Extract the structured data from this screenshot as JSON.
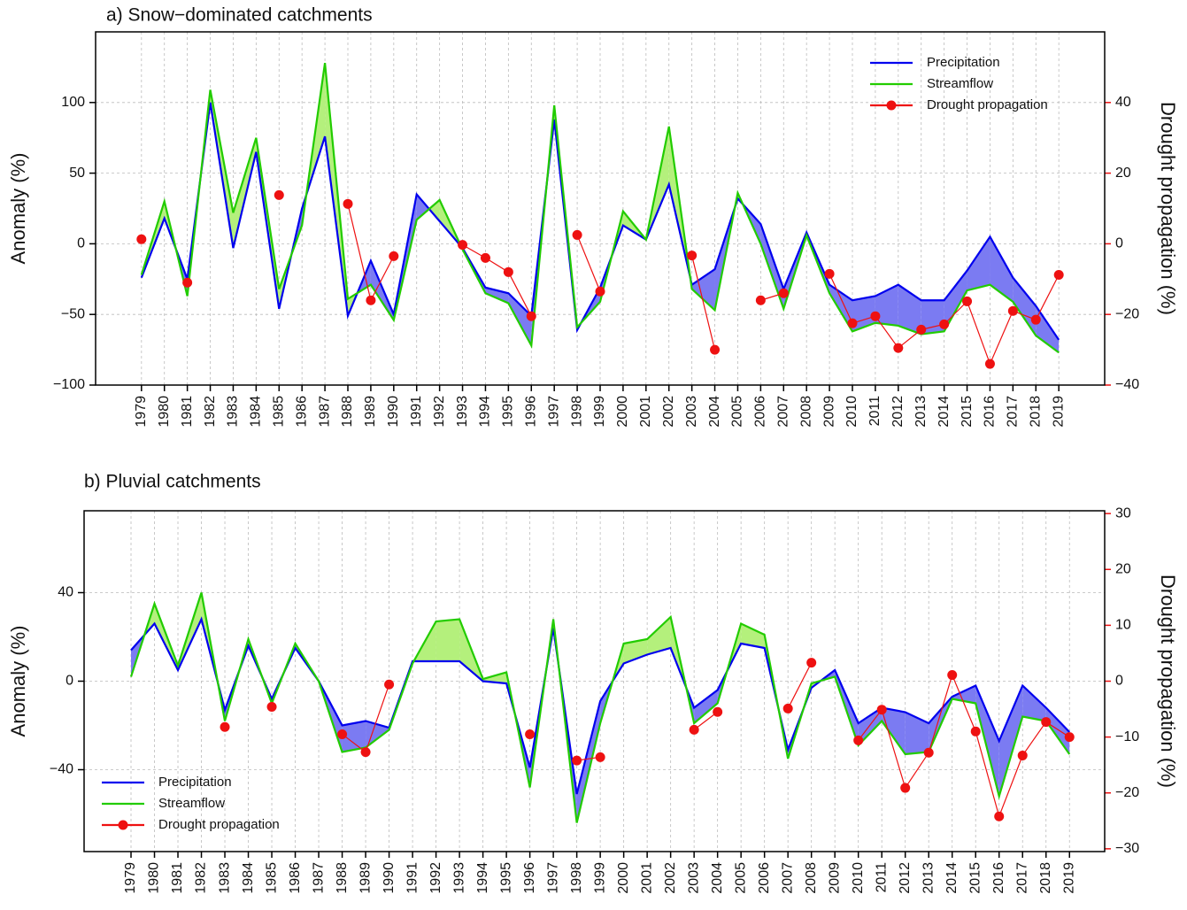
{
  "chart_data": [
    {
      "type": "line",
      "title": "a) Snow−dominated catchments",
      "y_label": "Anomaly (%)",
      "y2_label": "Drought propagation (%)",
      "x": [
        1979,
        1980,
        1981,
        1982,
        1983,
        1984,
        1985,
        1986,
        1987,
        1988,
        1989,
        1990,
        1991,
        1992,
        1993,
        1994,
        1995,
        1996,
        1997,
        1998,
        1999,
        2000,
        2001,
        2002,
        2003,
        2004,
        2005,
        2006,
        2007,
        2008,
        2009,
        2010,
        2011,
        2012,
        2013,
        2014,
        2015,
        2016,
        2017,
        2018,
        2019
      ],
      "xlim": [
        1977,
        2021
      ],
      "xticks": [
        1979,
        1980,
        1981,
        1982,
        1983,
        1984,
        1985,
        1986,
        1987,
        1988,
        1989,
        1990,
        1991,
        1992,
        1993,
        1994,
        1995,
        1996,
        1997,
        1998,
        1999,
        2000,
        2001,
        2002,
        2003,
        2004,
        2005,
        2006,
        2007,
        2008,
        2009,
        2010,
        2011,
        2012,
        2013,
        2014,
        2015,
        2016,
        2017,
        2018,
        2019
      ],
      "ylim": [
        -100,
        150
      ],
      "yticks": [
        {
          "value": -100,
          "label": "−100"
        },
        {
          "value": -50,
          "label": "−50"
        },
        0,
        50,
        100
      ],
      "y2lim": [
        -40,
        60
      ],
      "y2ticks": [
        {
          "value": -40,
          "label": "−40"
        },
        {
          "value": -20,
          "label": "−20"
        },
        0,
        20,
        40
      ],
      "grid": true,
      "legend": "upper right",
      "fill_colors": [
        "#7b7bf2",
        "#b4f07c"
      ],
      "y2_color": "#ee1111",
      "series": [
        {
          "name": "Precipitation",
          "color": "#0000ee",
          "values": [
            -24,
            18,
            -25,
            100,
            -3,
            65,
            -46,
            25,
            76,
            -51,
            -12,
            -50,
            35,
            16,
            -3,
            -31,
            -35,
            -51,
            88,
            -61,
            -31,
            13,
            3,
            42,
            -29,
            -18,
            32,
            14,
            -32,
            8,
            -29,
            -40,
            -37,
            -29,
            -40,
            -40,
            -19,
            5,
            -24,
            -44,
            -68
          ]
        },
        {
          "name": "Streamflow",
          "color": "#22cc00",
          "values": [
            -22,
            30,
            -37,
            109,
            22,
            75,
            -32,
            13,
            128,
            -39,
            -29,
            -54,
            17,
            31,
            -4,
            -35,
            -42,
            -72,
            98,
            -59,
            -41,
            23,
            3,
            83,
            -32,
            -47,
            36,
            0,
            -46,
            6,
            -35,
            -62,
            -56,
            -58,
            -64,
            -62,
            -33,
            -29,
            -41,
            -65,
            -77
          ]
        },
        {
          "name": "Drought propagation",
          "color": "#ee1111",
          "axis": "y2",
          "marker": "circle",
          "values": [
            1.3,
            null,
            -11,
            null,
            null,
            null,
            13.8,
            null,
            null,
            11.3,
            -16,
            -3.5,
            null,
            null,
            -0.3,
            -4,
            -8,
            -20.5,
            null,
            2.5,
            -13.5,
            null,
            null,
            null,
            -3.3,
            -30,
            null,
            -16,
            -14,
            null,
            -8.5,
            -22.5,
            -20.5,
            -29.5,
            -24.3,
            -22.8,
            -16.3,
            -34,
            -19,
            -21.5,
            -8.8
          ]
        }
      ]
    },
    {
      "type": "line",
      "title": "b) Pluvial catchments",
      "y_label": "Anomaly (%)",
      "y2_label": "Drought propagation (%)",
      "x": [
        1979,
        1980,
        1981,
        1982,
        1983,
        1984,
        1985,
        1986,
        1987,
        1988,
        1989,
        1990,
        1991,
        1992,
        1993,
        1994,
        1995,
        1996,
        1997,
        1998,
        1999,
        2000,
        2001,
        2002,
        2003,
        2004,
        2005,
        2006,
        2007,
        2008,
        2009,
        2010,
        2011,
        2012,
        2013,
        2014,
        2015,
        2016,
        2017,
        2018,
        2019
      ],
      "xlim": [
        1977,
        2020.5
      ],
      "xticks": [
        1979,
        1980,
        1981,
        1982,
        1983,
        1984,
        1985,
        1986,
        1987,
        1988,
        1989,
        1990,
        1991,
        1992,
        1993,
        1994,
        1995,
        1996,
        1997,
        1998,
        1999,
        2000,
        2001,
        2002,
        2003,
        2004,
        2005,
        2006,
        2007,
        2008,
        2009,
        2010,
        2011,
        2012,
        2013,
        2014,
        2015,
        2016,
        2017,
        2018,
        2019
      ],
      "ylim": [
        -77,
        77
      ],
      "yticks": [
        {
          "value": -40,
          "label": "−40"
        },
        0,
        40
      ],
      "y2lim": [
        -30.5,
        30.5
      ],
      "y2ticks": [
        {
          "value": -30,
          "label": "−30"
        },
        {
          "value": -20,
          "label": "−20"
        },
        {
          "value": -10,
          "label": "−10"
        },
        0,
        10,
        20,
        30
      ],
      "grid": true,
      "legend": "lower left",
      "fill_colors": [
        "#7b7bf2",
        "#b4f07c"
      ],
      "y2_color": "#ee1111",
      "series": [
        {
          "name": "Precipitation",
          "color": "#0000ee",
          "values": [
            14,
            26,
            5,
            28,
            -13,
            16,
            -8,
            15,
            0,
            -20,
            -18,
            -21,
            9,
            9,
            9,
            0,
            -1,
            -39,
            24,
            -51,
            -9,
            8,
            12,
            15,
            -12,
            -4,
            17,
            15,
            -31,
            -3,
            5,
            -19,
            -12,
            -14,
            -19,
            -7,
            -2,
            -27,
            -2,
            -12,
            -23
          ]
        },
        {
          "name": "Streamflow",
          "color": "#22cc00",
          "values": [
            2,
            35,
            7,
            40,
            -18,
            19,
            -10,
            17,
            0,
            -32,
            -30,
            -22,
            8,
            27,
            28,
            1,
            4,
            -48,
            28,
            -64,
            -19,
            17,
            19,
            29,
            -19,
            -10,
            26,
            21,
            -35,
            -1,
            2,
            -29,
            -18,
            -33,
            -32,
            -8,
            -10,
            -52,
            -16,
            -18,
            -33
          ]
        },
        {
          "name": "Drought propagation",
          "color": "#ee1111",
          "axis": "y2",
          "marker": "circle",
          "values": [
            null,
            null,
            null,
            null,
            -8.2,
            null,
            -4.6,
            null,
            null,
            -9.5,
            -12.7,
            -0.6,
            null,
            null,
            null,
            null,
            null,
            -9.5,
            null,
            -14.2,
            -13.6,
            null,
            null,
            null,
            -8.7,
            -5.5,
            null,
            null,
            -4.9,
            3.3,
            null,
            -10.6,
            -5.1,
            -19.1,
            -12.8,
            1.1,
            -9,
            -24.2,
            -13.3,
            -7.3,
            -10
          ]
        }
      ]
    }
  ]
}
